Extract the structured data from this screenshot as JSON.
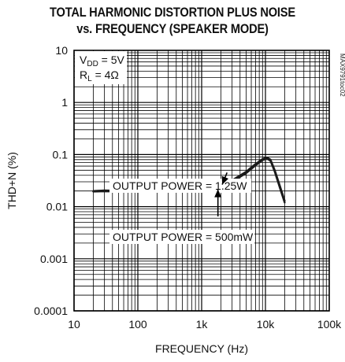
{
  "chart_data": {
    "type": "line",
    "title_lines": [
      "TOTAL HARMONIC DISTORTION PLUS NOISE",
      "vs. FREQUENCY (SPEAKER MODE)"
    ],
    "xlabel": "FREQUENCY (Hz)",
    "ylabel": "THD+N (%)",
    "x_scale": "log",
    "y_scale": "log",
    "xlim": [
      10,
      100000
    ],
    "ylim": [
      0.0001,
      10
    ],
    "x_ticks": [
      {
        "value": 10,
        "label": "10"
      },
      {
        "value": 100,
        "label": "100"
      },
      {
        "value": 1000,
        "label": "1k"
      },
      {
        "value": 10000,
        "label": "10k"
      },
      {
        "value": 100000,
        "label": "100k"
      }
    ],
    "y_ticks": [
      {
        "value": 10,
        "label": "10"
      },
      {
        "value": 1,
        "label": "1"
      },
      {
        "value": 0.1,
        "label": "0.1"
      },
      {
        "value": 0.01,
        "label": "0.01"
      },
      {
        "value": 0.001,
        "label": "0.001"
      },
      {
        "value": 0.0001,
        "label": "0.0001"
      }
    ],
    "grid": true,
    "conditions": {
      "vdd_main": "V",
      "vdd_sub": "DD",
      "vdd_value": " = 5V",
      "rl_main": "R",
      "rl_sub": "L",
      "rl_value": " = 4Ω"
    },
    "part_id": "MAX9791toc02",
    "annotations": [
      {
        "text": "OUTPUT POWER = 1.25W",
        "arrow_from": [
          2500,
          0.045
        ],
        "arrow_to": [
          2100,
          0.0265
        ]
      },
      {
        "text": "OUTPUT POWER = 500mW",
        "arrow_from": [
          1800,
          0.0065
        ],
        "arrow_to": [
          1800,
          0.0215
        ]
      }
    ],
    "series": [
      {
        "values_1": [
          [
            20,
            0.02
          ],
          [
            30,
            0.0205
          ],
          [
            50,
            0.0202
          ],
          [
            100,
            0.0201
          ],
          [
            200,
            0.0203
          ],
          [
            500,
            0.0208
          ],
          [
            1000,
            0.022
          ],
          [
            2000,
            0.026
          ],
          [
            3000,
            0.032
          ],
          [
            5000,
            0.047
          ],
          [
            7000,
            0.066
          ],
          [
            9000,
            0.082
          ],
          [
            10500,
            0.088
          ],
          [
            12000,
            0.08
          ],
          [
            14000,
            0.05
          ],
          [
            17000,
            0.024
          ],
          [
            20000,
            0.013
          ]
        ],
        "values_2": [
          [
            20,
            0.0195
          ],
          [
            30,
            0.0197
          ],
          [
            50,
            0.0195
          ],
          [
            100,
            0.0193
          ],
          [
            200,
            0.0195
          ],
          [
            500,
            0.02
          ],
          [
            1000,
            0.0212
          ],
          [
            2000,
            0.0248
          ],
          [
            3000,
            0.03
          ],
          [
            5000,
            0.044
          ],
          [
            7000,
            0.062
          ],
          [
            9000,
            0.078
          ],
          [
            10500,
            0.084
          ],
          [
            12000,
            0.076
          ],
          [
            14000,
            0.047
          ],
          [
            17000,
            0.022
          ],
          [
            20000,
            0.012
          ]
        ]
      }
    ]
  }
}
